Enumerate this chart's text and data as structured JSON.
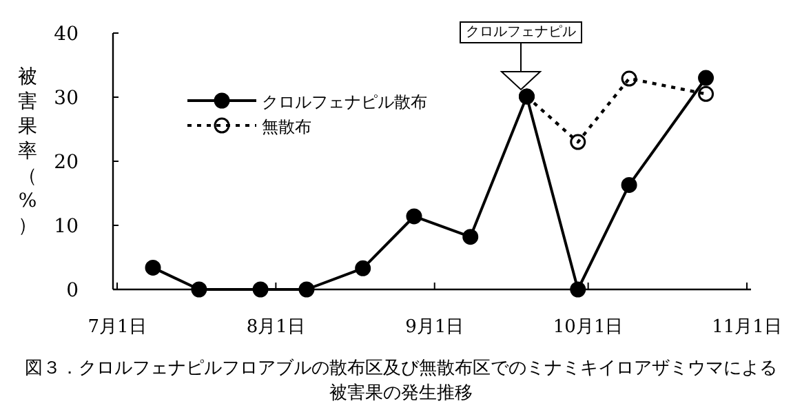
{
  "chart_data": {
    "type": "line",
    "ylabel": "被害果率（%）",
    "series": [
      {
        "name": "クロルフェナピル散布",
        "color": "#000000",
        "marker": "circle",
        "line_style": "solid",
        "x": [
          "--07-08",
          "--07-17",
          "--07-29",
          "--08-07",
          "--08-18",
          "--08-28",
          "--09-08",
          "--09-19",
          "--09-29",
          "--10-09",
          "--10-24"
        ],
        "values": [
          3.4,
          0,
          0,
          0,
          3.3,
          11.4,
          8.2,
          30.1,
          0,
          16.3,
          33
        ]
      },
      {
        "name": "無散布",
        "color": "#000000",
        "marker": "circle",
        "line_style": "dotted",
        "x": [
          "--09-19",
          "--09-29",
          "--10-09",
          "--10-24"
        ],
        "values": [
          30.1,
          23,
          32.9,
          30.5
        ]
      }
    ],
    "xlim": [
      "--07-01",
      "--11-01"
    ],
    "xticks": [
      {
        "value": "--07-01",
        "label": "7月1日"
      },
      {
        "value": "--08-01",
        "label": "8月1日"
      },
      {
        "value": "--09-01",
        "label": "9月1日"
      },
      {
        "value": "--10-01",
        "label": "10月1日"
      },
      {
        "value": "--11-01",
        "label": "11月1日"
      }
    ],
    "ylim": [
      0,
      40
    ],
    "yticks": [
      0,
      10,
      20,
      30,
      40
    ],
    "grid": false,
    "legend": "top left",
    "annotations": [
      "クロルフェナピル",
      "図３．クロルフェナピルフロアブルの散布区及び無散布区でのミナミキイロアザミウマによる",
      "被害果の発生推移"
    ]
  }
}
